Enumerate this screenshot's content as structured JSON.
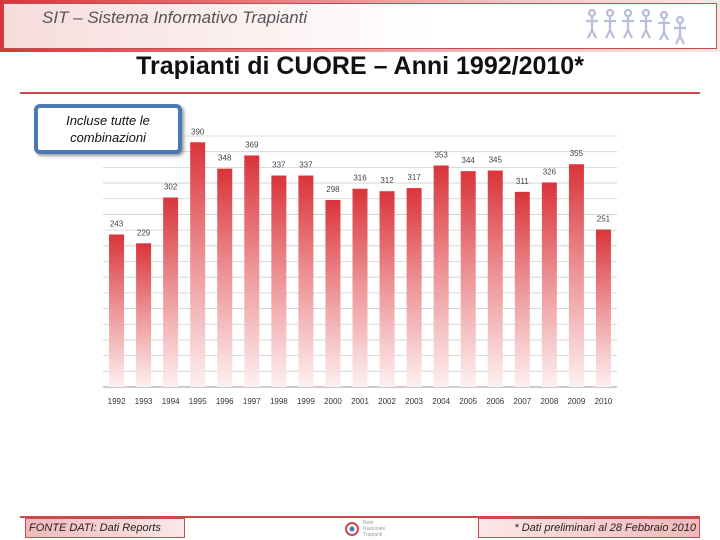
{
  "header": {
    "title": "SIT – Sistema Informativo Trapianti",
    "logo_icon": "people-chain-icon"
  },
  "page_title": "Trapianti di CUORE – Anni 1992/2010*",
  "callout": "Incluse tutte le combinazioni",
  "footer": {
    "source": "FONTE DATI: Dati Reports",
    "note": "* Dati preliminari al 28 Febbraio 2010",
    "logo_icon": "cnt-logo-icon",
    "logo_text": "Rete Nazionale Trapianti"
  },
  "colors": {
    "accent": "#c9494d",
    "bar_top": "#d9343a",
    "bar_bottom": "#fbe4e4",
    "callout_border": "#4a78b3"
  },
  "chart_data": {
    "type": "bar",
    "categories": [
      "1992",
      "1993",
      "1994",
      "1995",
      "1996",
      "1997",
      "1998",
      "1999",
      "2000",
      "2001",
      "2002",
      "2003",
      "2004",
      "2005",
      "2006",
      "2007",
      "2008",
      "2009",
      "2010"
    ],
    "values": [
      243,
      229,
      302,
      390,
      348,
      369,
      337,
      337,
      298,
      316,
      312,
      317,
      353,
      344,
      345,
      311,
      326,
      355,
      251
    ],
    "title": "Trapianti di CUORE – Anni 1992/2010*",
    "xlabel": "",
    "ylabel": "",
    "ylim": [
      0,
      400
    ],
    "grid": true,
    "data_labels": true
  }
}
